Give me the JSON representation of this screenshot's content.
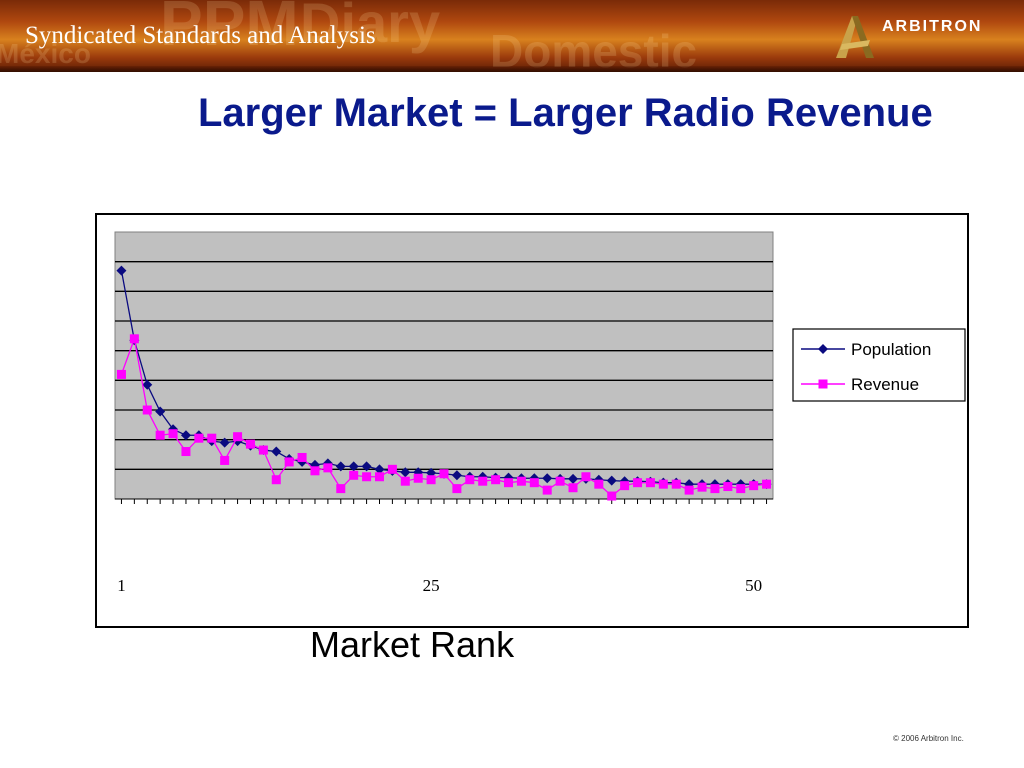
{
  "header": {
    "banner_title": "Syndicated Standards and Analysis",
    "watermark_words": [
      "México",
      "PPM",
      "Diary",
      "Domestic"
    ],
    "logo_text": "ARBITRON"
  },
  "slide": {
    "title": "Larger Market = Larger Radio Revenue",
    "copyright": "© 2006 Arbitron Inc."
  },
  "colors": {
    "title": "#0a1a8c",
    "plot_background": "#c0c0c0",
    "population_series": "#0a0a80",
    "revenue_series": "#ff00ff"
  },
  "chart_data": {
    "type": "line",
    "title": "",
    "xlabel": "Market Rank",
    "ylabel": "",
    "x": [
      1,
      2,
      3,
      4,
      5,
      6,
      7,
      8,
      9,
      10,
      11,
      12,
      13,
      14,
      15,
      16,
      17,
      18,
      19,
      20,
      21,
      22,
      23,
      24,
      25,
      26,
      27,
      28,
      29,
      30,
      31,
      32,
      33,
      34,
      35,
      36,
      37,
      38,
      39,
      40,
      41,
      42,
      43,
      44,
      45,
      46,
      47,
      48,
      49,
      50,
      51
    ],
    "x_tick_labels": [
      {
        "x": 1,
        "label": "1"
      },
      {
        "x": 25,
        "label": "25"
      },
      {
        "x": 50,
        "label": "50"
      }
    ],
    "xlim": [
      0.5,
      51.5
    ],
    "ylim": [
      0,
      9
    ],
    "gridlines": true,
    "legend_position": "right",
    "series": [
      {
        "name": "Population",
        "marker": "diamond",
        "color": "#0a0a80",
        "values": [
          7.7,
          5.35,
          3.85,
          2.95,
          2.35,
          2.15,
          2.15,
          1.95,
          1.9,
          1.95,
          1.8,
          1.65,
          1.6,
          1.35,
          1.25,
          1.15,
          1.2,
          1.1,
          1.1,
          1.1,
          1.0,
          0.95,
          0.9,
          0.9,
          0.88,
          0.85,
          0.8,
          0.75,
          0.75,
          0.72,
          0.72,
          0.7,
          0.7,
          0.7,
          0.68,
          0.68,
          0.68,
          0.65,
          0.62,
          0.6,
          0.6,
          0.58,
          0.55,
          0.55,
          0.5,
          0.5,
          0.5,
          0.5,
          0.5,
          0.5,
          0.5
        ]
      },
      {
        "name": "Revenue",
        "marker": "square",
        "color": "#ff00ff",
        "values": [
          4.2,
          5.4,
          3.0,
          2.15,
          2.2,
          1.6,
          2.05,
          2.05,
          1.3,
          2.1,
          1.85,
          1.65,
          0.65,
          1.25,
          1.4,
          0.95,
          1.05,
          0.35,
          0.8,
          0.75,
          0.75,
          1.0,
          0.6,
          0.7,
          0.65,
          0.85,
          0.35,
          0.65,
          0.6,
          0.65,
          0.55,
          0.6,
          0.55,
          0.3,
          0.6,
          0.38,
          0.75,
          0.5,
          0.1,
          0.45,
          0.55,
          0.55,
          0.5,
          0.5,
          0.3,
          0.4,
          0.35,
          0.42,
          0.35,
          0.45,
          0.5
        ]
      }
    ]
  }
}
